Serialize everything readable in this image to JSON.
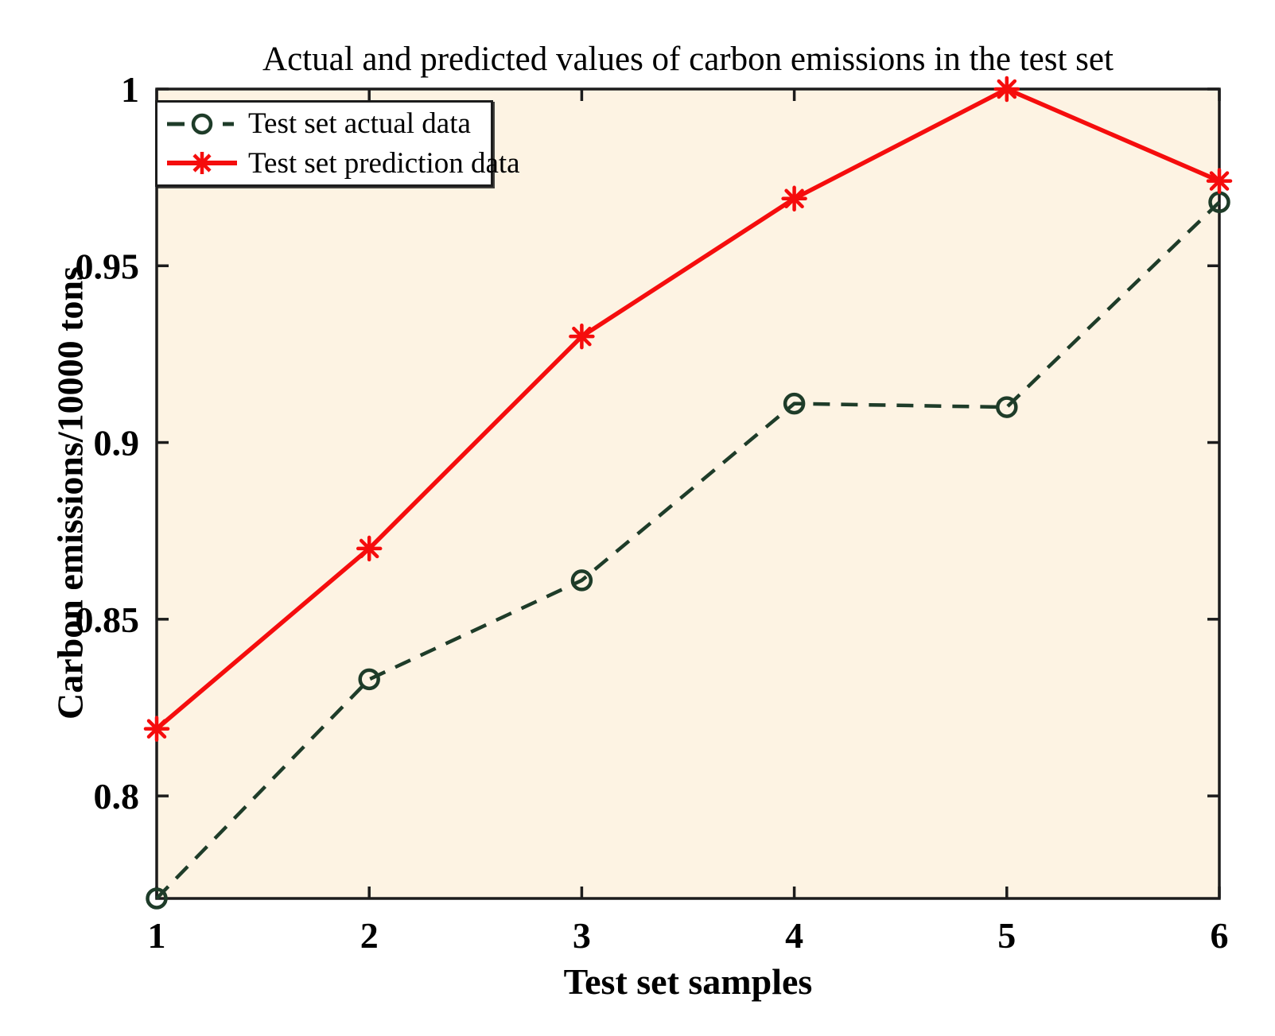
{
  "chart_data": {
    "type": "line",
    "title": "Actual and predicted values of carbon emissions in the test set",
    "xlabel": "Test set samples",
    "ylabel": "Carbon emissions/10000 tons",
    "x": [
      1,
      2,
      3,
      4,
      5,
      6
    ],
    "series": [
      {
        "name": "Test set actual data",
        "values": [
          0.771,
          0.833,
          0.861,
          0.911,
          0.91,
          0.968
        ],
        "color": "#1e3c29",
        "line_style": "dashed",
        "marker": "circle"
      },
      {
        "name": "Test set prediction data",
        "values": [
          0.819,
          0.87,
          0.93,
          0.969,
          1.0,
          0.974
        ],
        "color": "#f50d0d",
        "line_style": "solid",
        "marker": "asterisk"
      }
    ],
    "xlim": [
      1,
      6
    ],
    "ylim": [
      0.771,
      1.0
    ],
    "x_tick_labels": [
      "1",
      "2",
      "3",
      "4",
      "5",
      "6"
    ],
    "x_tick_values": [
      1,
      2,
      3,
      4,
      5,
      6
    ],
    "y_tick_labels": [
      "0.8",
      "0.85",
      "0.9",
      "0.95",
      "1"
    ],
    "y_tick_values": [
      0.8,
      0.85,
      0.9,
      0.95,
      1.0
    ],
    "grid": false,
    "legend_position": "top-left",
    "plot_background": "#fdf3e3",
    "figure_background": "#ffffff",
    "axis_color": "#1c1c1c"
  }
}
